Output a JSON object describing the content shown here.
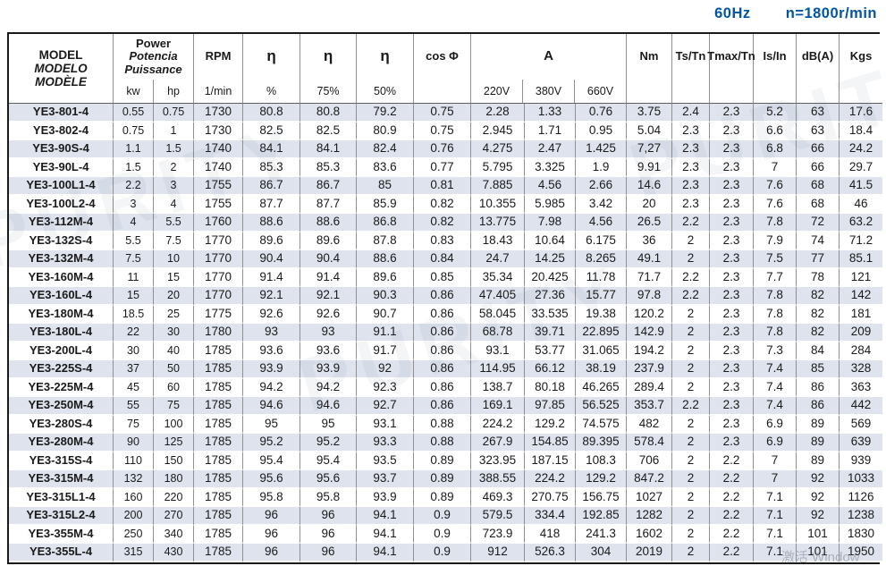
{
  "page": {
    "frequency_label": "60Hz",
    "speed_label": "n=1800r/min",
    "accent_color": "#0055a4",
    "row_shade_color": "#dee3ee",
    "watermark_text": "PURITY",
    "activate_watermark": "激活 Window"
  },
  "table": {
    "header": {
      "model_lines": [
        "MODEL",
        "MODELO",
        "MODÈLE"
      ],
      "power_lines": [
        "Power",
        "Potencia",
        "Puissance"
      ],
      "power_subs": [
        "kw",
        "hp"
      ],
      "rpm_label": "RPM",
      "rpm_sub": "1/min",
      "eta_symbol": "η",
      "eta_subs": [
        "%",
        "75%",
        "50%"
      ],
      "cos_label": "cos Φ",
      "current_label": "A",
      "current_subs": [
        "220V",
        "380V",
        "660V"
      ],
      "nm_label": "Nm",
      "ts_tn_label": "Ts/Tn",
      "tmax_tn_label": "Tmax/Tn",
      "is_in_label": "Is/In",
      "db_label": "dB(A)",
      "kgs_label": "Kgs"
    },
    "rows": [
      [
        "YE3-801-4",
        "0.55",
        "0.75",
        "1730",
        "80.8",
        "80.8",
        "79.2",
        "0.75",
        "2.28",
        "1.33",
        "0.76",
        "3.75",
        "2.4",
        "2.3",
        "5.2",
        "63",
        "17.6"
      ],
      [
        "YE3-802-4",
        "0.75",
        "1",
        "1730",
        "82.5",
        "82.5",
        "80.9",
        "0.75",
        "2.945",
        "1.71",
        "0.95",
        "5.04",
        "2.3",
        "2.3",
        "6.6",
        "63",
        "18.4"
      ],
      [
        "YE3-90S-4",
        "1.1",
        "1.5",
        "1740",
        "84.1",
        "84.1",
        "82.4",
        "0.76",
        "4.275",
        "2.47",
        "1.425",
        "7,27",
        "2.3",
        "2.3",
        "6.8",
        "66",
        "24.2"
      ],
      [
        "YE3-90L-4",
        "1.5",
        "2",
        "1740",
        "85.3",
        "85.3",
        "83.6",
        "0.77",
        "5.795",
        "3.325",
        "1.9",
        "9.91",
        "2.3",
        "2.3",
        "7",
        "66",
        "29.7"
      ],
      [
        "YE3-100L1-4",
        "2.2",
        "3",
        "1755",
        "86.7",
        "86.7",
        "85",
        "0.81",
        "7.885",
        "4.56",
        "2.66",
        "14.6",
        "2.3",
        "2.3",
        "7.6",
        "68",
        "41.5"
      ],
      [
        "YE3-100L2-4",
        "3",
        "4",
        "1755",
        "87.7",
        "87.7",
        "85.9",
        "0.82",
        "10.355",
        "5.985",
        "3.42",
        "20",
        "2.3",
        "2.3",
        "7.6",
        "68",
        "46"
      ],
      [
        "YE3-112M-4",
        "4",
        "5.5",
        "1760",
        "88.6",
        "88.6",
        "86.8",
        "0.82",
        "13.775",
        "7.98",
        "4.56",
        "26.5",
        "2.2",
        "2.3",
        "7.8",
        "72",
        "63.2"
      ],
      [
        "YE3-132S-4",
        "5.5",
        "7.5",
        "1770",
        "89.6",
        "89.6",
        "87.8",
        "0.83",
        "18.43",
        "10.64",
        "6.175",
        "36",
        "2",
        "2.3",
        "7.9",
        "74",
        "71.2"
      ],
      [
        "YE3-132M-4",
        "7.5",
        "10",
        "1770",
        "90.4",
        "90.4",
        "88.6",
        "0.84",
        "24.7",
        "14.25",
        "8.265",
        "49.1",
        "2",
        "2.3",
        "7.5",
        "77",
        "85.1"
      ],
      [
        "YE3-160M-4",
        "11",
        "15",
        "1770",
        "91.4",
        "91.4",
        "89.6",
        "0.85",
        "35.34",
        "20.425",
        "11.78",
        "71.7",
        "2.2",
        "2.3",
        "7.7",
        "78",
        "121"
      ],
      [
        "YE3-160L-4",
        "15",
        "20",
        "1770",
        "92.1",
        "92.1",
        "90.3",
        "0.86",
        "47.405",
        "27.36",
        "15.77",
        "97.8",
        "2.2",
        "2.3",
        "7.8",
        "82",
        "142"
      ],
      [
        "YE3-180M-4",
        "18.5",
        "25",
        "1775",
        "92.6",
        "92.6",
        "90.7",
        "0.86",
        "58.045",
        "33.535",
        "19.38",
        "120.2",
        "2",
        "2.3",
        "7.8",
        "82",
        "181"
      ],
      [
        "YE3-180L-4",
        "22",
        "30",
        "1780",
        "93",
        "93",
        "91.1",
        "0.86",
        "68.78",
        "39.71",
        "22.895",
        "142.9",
        "2",
        "2.3",
        "7.8",
        "82",
        "209"
      ],
      [
        "YE3-200L-4",
        "30",
        "40",
        "1785",
        "93.6",
        "93.6",
        "91.7",
        "0.86",
        "93.1",
        "53.77",
        "31.065",
        "194.2",
        "2",
        "2.3",
        "7.3",
        "84",
        "284"
      ],
      [
        "YE3-225S-4",
        "37",
        "50",
        "1785",
        "93.9",
        "93.9",
        "92",
        "0.86",
        "114.95",
        "66.12",
        "38.19",
        "237.9",
        "2",
        "2.3",
        "7.4",
        "85",
        "328"
      ],
      [
        "YE3-225M-4",
        "45",
        "60",
        "1785",
        "94.2",
        "94.2",
        "92.3",
        "0.86",
        "138.7",
        "80.18",
        "46.265",
        "289.4",
        "2",
        "2.3",
        "7.4",
        "86",
        "363"
      ],
      [
        "YE3-250M-4",
        "55",
        "75",
        "1785",
        "94.6",
        "94.6",
        "92.7",
        "0.86",
        "169.1",
        "97.85",
        "56.525",
        "353.7",
        "2.2",
        "2.3",
        "7.4",
        "86",
        "442"
      ],
      [
        "YE3-280S-4",
        "75",
        "100",
        "1785",
        "95",
        "95",
        "93.1",
        "0.88",
        "224.2",
        "129.2",
        "74.575",
        "482",
        "2",
        "2.3",
        "6.9",
        "89",
        "569"
      ],
      [
        "YE3-280M-4",
        "90",
        "125",
        "1785",
        "95.2",
        "95.2",
        "93.3",
        "0.88",
        "267.9",
        "154.85",
        "89.395",
        "578.4",
        "2",
        "2.3",
        "6.9",
        "89",
        "639"
      ],
      [
        "YE3-315S-4",
        "110",
        "150",
        "1785",
        "95.4",
        "95.4",
        "93.5",
        "0.89",
        "323.95",
        "187.15",
        "108.3",
        "706",
        "2",
        "2.2",
        "7",
        "89",
        "939"
      ],
      [
        "YE3-315M-4",
        "132",
        "180",
        "1785",
        "95.6",
        "95.6",
        "93.7",
        "0.89",
        "388.55",
        "224.2",
        "129.2",
        "847.2",
        "2",
        "2.2",
        "7",
        "92",
        "1033"
      ],
      [
        "YE3-315L1-4",
        "160",
        "220",
        "1785",
        "95.8",
        "95.8",
        "93.9",
        "0.89",
        "469.3",
        "270.75",
        "156.75",
        "1027",
        "2",
        "2.2",
        "7.1",
        "92",
        "1126"
      ],
      [
        "YE3-315L2-4",
        "200",
        "270",
        "1785",
        "96",
        "96",
        "94.1",
        "0.9",
        "579.5",
        "334.4",
        "192.85",
        "1282",
        "2",
        "2.2",
        "7.1",
        "92",
        "1238"
      ],
      [
        "YE3-355M-4",
        "250",
        "340",
        "1785",
        "96",
        "96",
        "94.1",
        "0.9",
        "723.9",
        "418",
        "241.3",
        "1602",
        "2",
        "2.2",
        "7.1",
        "101",
        "1830"
      ],
      [
        "YE3-355L-4",
        "315",
        "430",
        "1785",
        "96",
        "96",
        "94.1",
        "0.9",
        "912",
        "526.3",
        "304",
        "2019",
        "2",
        "2.2",
        "7.1",
        "101",
        "1950"
      ]
    ]
  }
}
